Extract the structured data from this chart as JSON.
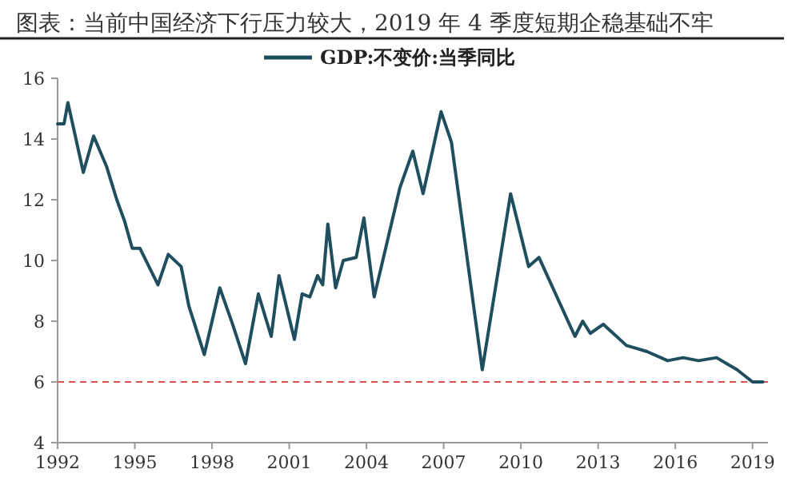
{
  "chart_data": {
    "type": "line",
    "title": "图表：当前中国经济下行压力较大，2019 年 4 季度短期企稳基础不牢",
    "x": [
      1992.0,
      1992.25,
      1992.4,
      1993.0,
      1993.4,
      1993.9,
      1994.3,
      1994.6,
      1994.9,
      1995.2,
      1995.9,
      1996.3,
      1996.8,
      1997.1,
      1997.7,
      1998.3,
      1998.8,
      1999.3,
      1999.8,
      2000.3,
      2000.6,
      2001.2,
      2001.5,
      2001.8,
      2002.1,
      2002.3,
      2002.5,
      2002.8,
      2003.1,
      2003.6,
      2003.9,
      2004.3,
      2005.3,
      2005.8,
      2006.2,
      2006.9,
      2007.3,
      2008.5,
      2009.6,
      2010.3,
      2010.7,
      2012.1,
      2012.4,
      2012.7,
      2013.2,
      2014.1,
      2014.5,
      2014.9,
      2015.7,
      2016.3,
      2016.9,
      2017.6,
      2018.4,
      2019.0,
      2019.4
    ],
    "series": [
      {
        "name": "GDP:不变价:当季同比",
        "color": "#1f4e5f",
        "values": [
          14.5,
          14.5,
          15.2,
          12.9,
          14.1,
          13.1,
          12.0,
          11.3,
          10.4,
          10.4,
          9.2,
          10.2,
          9.8,
          8.5,
          6.9,
          9.1,
          7.9,
          6.6,
          8.9,
          7.5,
          9.5,
          7.4,
          8.9,
          8.8,
          9.5,
          9.2,
          11.2,
          9.1,
          10.0,
          10.1,
          11.4,
          8.8,
          12.4,
          13.6,
          12.2,
          14.9,
          13.9,
          6.4,
          12.2,
          9.8,
          10.1,
          7.5,
          8.0,
          7.6,
          7.9,
          7.2,
          7.1,
          7.0,
          6.7,
          6.8,
          6.7,
          6.8,
          6.4,
          6.0,
          6.0
        ]
      }
    ],
    "xlim": [
      1992,
      2019.6
    ],
    "xticks": [
      1992,
      1995,
      1998,
      2001,
      2004,
      2007,
      2010,
      2013,
      2016,
      2019
    ],
    "ylim": [
      4,
      16
    ],
    "yticks": [
      4,
      6,
      8,
      10,
      12,
      14,
      16
    ],
    "ref_lines": [
      {
        "axis": "y",
        "value": 6,
        "color": "#d9534f",
        "line_style": "dashed"
      }
    ],
    "legend": "top"
  }
}
